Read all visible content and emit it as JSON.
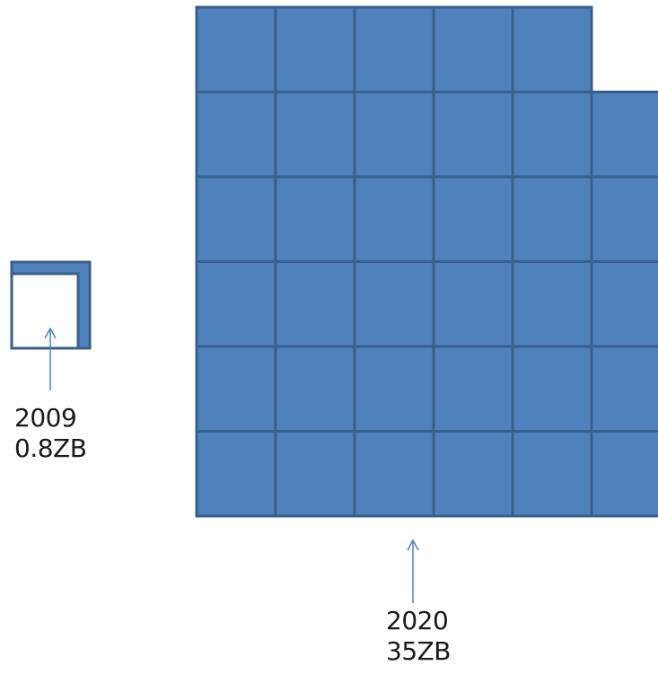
{
  "colors": {
    "cell_fill": "#4f81bd",
    "cell_stroke": "#3a5f8a",
    "arrow": "#4f81bd",
    "text": "#1a1a1a"
  },
  "diagram_data": {
    "small_block": {
      "year": "2009",
      "size": "0.8ZB",
      "value_zb": 0.8
    },
    "large_block": {
      "year": "2020",
      "size": "35ZB",
      "value_zb": 35
    }
  }
}
